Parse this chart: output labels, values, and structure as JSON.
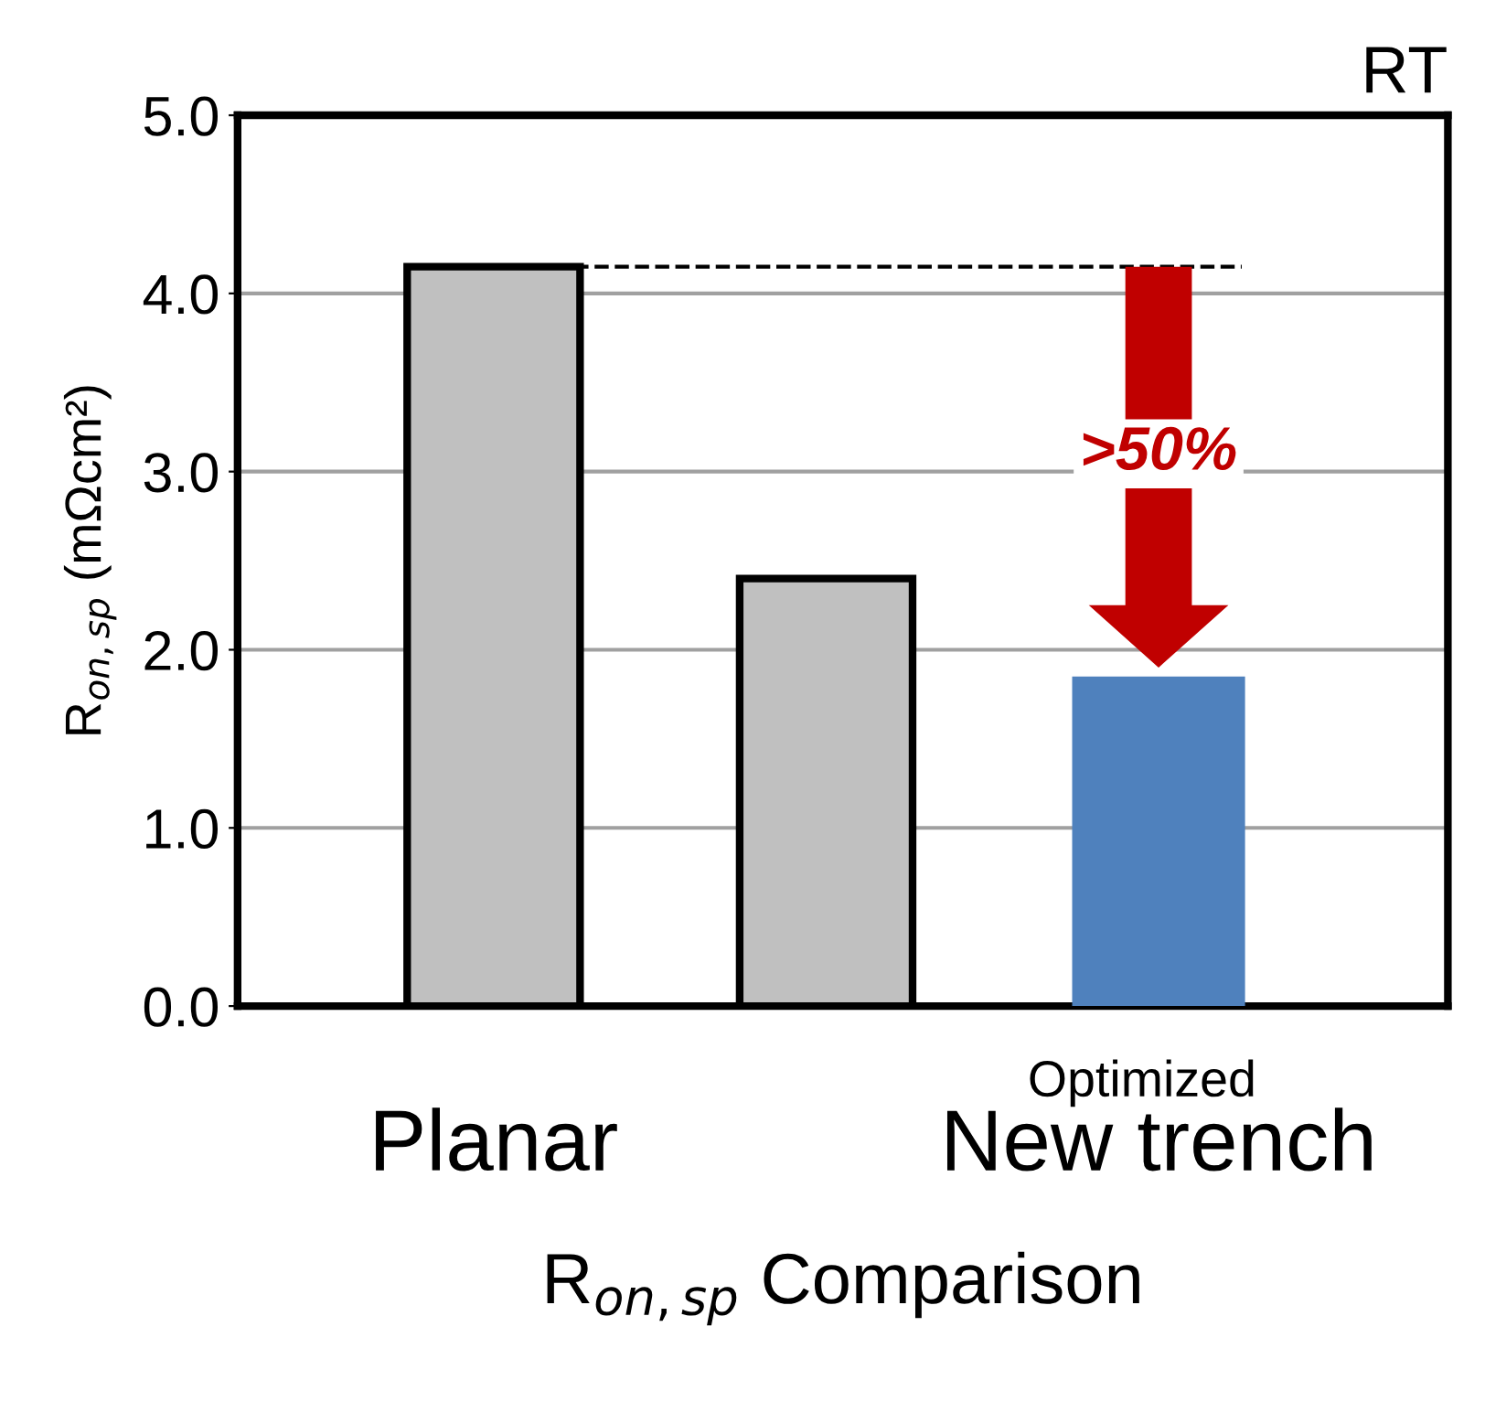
{
  "chart_data": {
    "type": "bar",
    "xlabel": "R$_{on,sp}$ Comparison",
    "ylabel": "R$_{on,sp}$ (mΩcm²)",
    "categories": [
      "Planar",
      null,
      "New trench"
    ],
    "values": [
      4.15,
      2.4,
      1.85
    ],
    "colors": [
      "#c0c0c0",
      "#c0c0c0",
      "#4f81bd"
    ],
    "ylim": [
      0,
      5
    ],
    "yticks": [
      {
        "value": 0,
        "label": "0.0"
      },
      {
        "value": 1,
        "label": "1.0"
      },
      {
        "value": 2,
        "label": "2.0"
      },
      {
        "value": 3,
        "label": "3.0"
      },
      {
        "value": 4,
        "label": "4.0"
      },
      {
        "value": 5,
        "label": "5.0"
      }
    ],
    "grid": "y",
    "ref_lines": [
      {
        "axis": "y",
        "value": 4.15,
        "line_style": "dashed",
        "color": "#000000"
      }
    ],
    "annotations": [
      "RT",
      ">50%",
      "Optimized"
    ]
  }
}
